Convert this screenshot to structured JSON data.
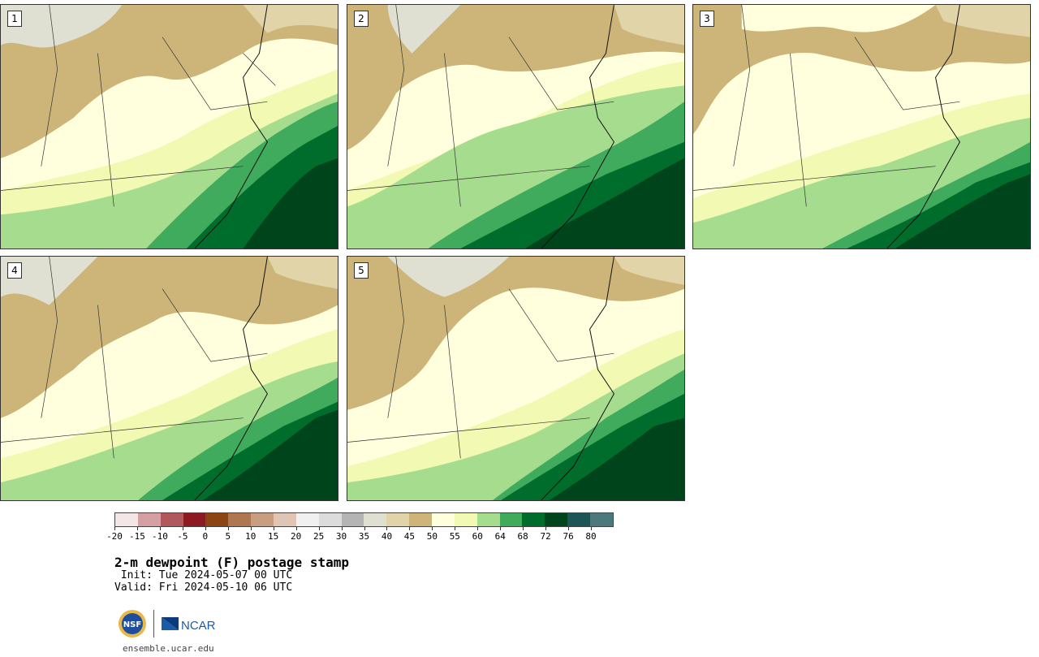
{
  "panels": [
    {
      "label": "1"
    },
    {
      "label": "2"
    },
    {
      "label": "3"
    },
    {
      "label": "4"
    },
    {
      "label": "5"
    }
  ],
  "colorbar": {
    "colors": [
      "#f3e6e6",
      "#d4a0a3",
      "#b0585d",
      "#8e1a21",
      "#8b4513",
      "#ae7751",
      "#c89d82",
      "#e0c5b5",
      "#f0f0f0",
      "#dcdcdc",
      "#b4b4b4",
      "#e0e0d2",
      "#e0d4a8",
      "#cdb57a",
      "#ffffdd",
      "#f1f9b3",
      "#a6dc8e",
      "#41ab5d",
      "#006d2c",
      "#00441b",
      "#1f5457",
      "#4c7a7c"
    ],
    "tick_labels": [
      "-20",
      "-15",
      "-10",
      "-5",
      "0",
      "5",
      "10",
      "15",
      "20",
      "25",
      "30",
      "35",
      "40",
      "45",
      "50",
      "55",
      "60",
      "64",
      "68",
      "72",
      "76",
      "80"
    ]
  },
  "title": "2-m dewpoint (F) postage stamp",
  "init": " Init: Tue 2024-05-07 00 UTC",
  "valid": "Valid: Fri 2024-05-10 06 UTC",
  "logos": {
    "nsf": "NSF",
    "ncar": "NCAR"
  },
  "website": "ensemble.ucar.edu"
}
